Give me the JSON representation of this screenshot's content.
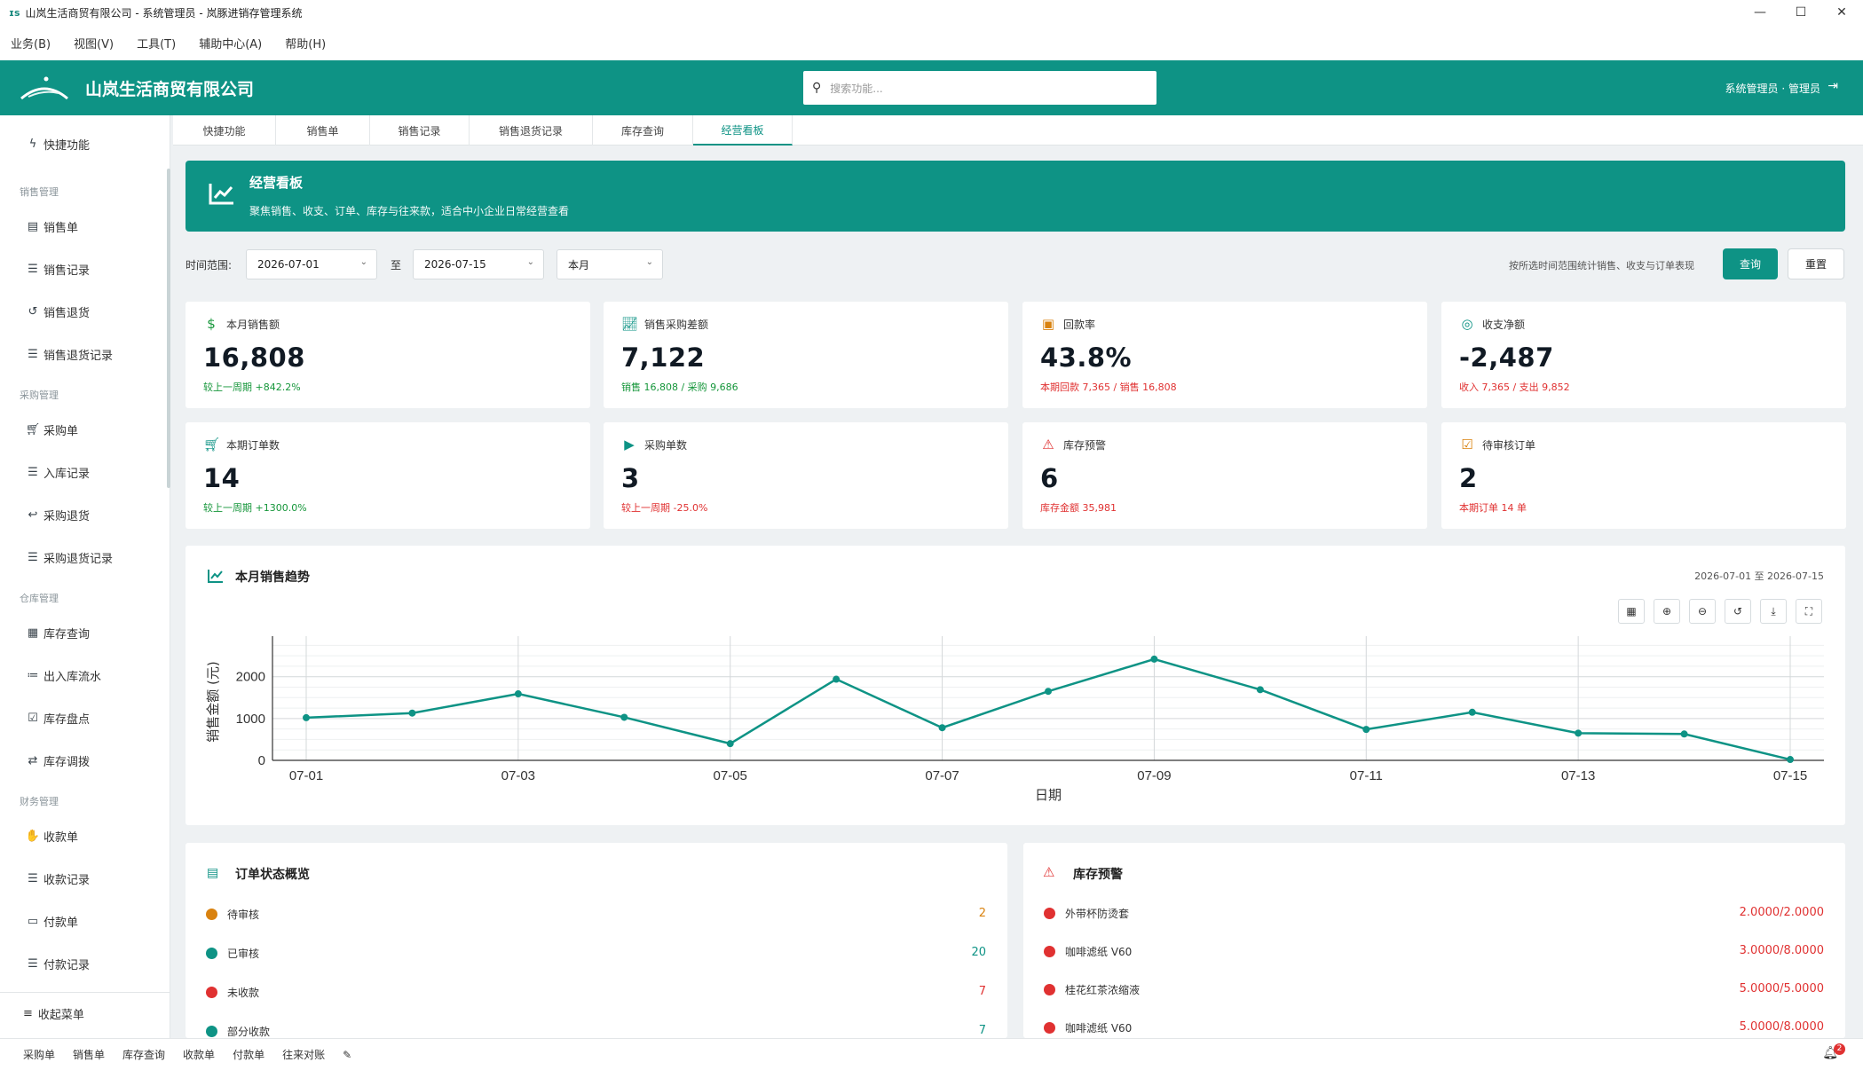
{
  "window": {
    "title": "山岚生活商贸有限公司 - 系统管理员 - 岚豚进销存管理系统",
    "logo_text": "ɪs"
  },
  "menu": [
    "业务(B)",
    "视图(V)",
    "工具(T)",
    "辅助中心(A)",
    "帮助(H)"
  ],
  "header": {
    "company": "山岚生活商贸有限公司",
    "search_placeholder": "搜索功能...",
    "user": "系统管理员 · 管理员"
  },
  "sidebar": {
    "quick": "快捷功能",
    "groups": [
      {
        "title": "销售管理",
        "items": [
          {
            "label": "销售单",
            "icon": "file-icon"
          },
          {
            "label": "销售记录",
            "icon": "list-icon"
          },
          {
            "label": "销售退货",
            "icon": "undo-icon"
          },
          {
            "label": "销售退货记录",
            "icon": "list-icon"
          }
        ]
      },
      {
        "title": "采购管理",
        "items": [
          {
            "label": "采购单",
            "icon": "cart-icon"
          },
          {
            "label": "入库记录",
            "icon": "list-icon"
          },
          {
            "label": "采购退货",
            "icon": "reply-icon"
          },
          {
            "label": "采购退货记录",
            "icon": "list-icon"
          }
        ]
      },
      {
        "title": "仓库管理",
        "items": [
          {
            "label": "库存查询",
            "icon": "boxes-icon"
          },
          {
            "label": "出入库流水",
            "icon": "bullet-list-icon"
          },
          {
            "label": "库存盘点",
            "icon": "clipboard-check-icon"
          },
          {
            "label": "库存调拨",
            "icon": "exchange-icon"
          }
        ]
      },
      {
        "title": "财务管理",
        "items": [
          {
            "label": "收款单",
            "icon": "hand-coin-icon"
          },
          {
            "label": "收款记录",
            "icon": "list-icon"
          },
          {
            "label": "付款单",
            "icon": "payment-icon"
          },
          {
            "label": "付款记录",
            "icon": "list-icon"
          }
        ]
      }
    ],
    "collapse": "收起菜单"
  },
  "tabs": [
    "快捷功能",
    "销售单",
    "销售记录",
    "销售退货记录",
    "库存查询",
    "经营看板"
  ],
  "active_tab": "经营看板",
  "banner": {
    "title": "经营看板",
    "subtitle": "聚焦销售、收支、订单、库存与往来款，适合中小企业日常经营查看"
  },
  "filter": {
    "label": "时间范围:",
    "start": "2026-07-01",
    "to": "至",
    "end": "2026-07-15",
    "period": "本月",
    "hint": "按所选时间范围统计销售、收支与订单表现",
    "query": "查询",
    "reset": "重置"
  },
  "kpis": [
    {
      "icon": "dollar-icon",
      "color": "#15963a",
      "title": "本月销售额",
      "value": "16,808",
      "foot": "较上一周期 +842.2%",
      "foot_class": "green"
    },
    {
      "icon": "chart-line-icon",
      "color": "#0e9385",
      "title": "销售采购差额",
      "value": "7,122",
      "foot": "销售 16,808 / 采购 9,686",
      "foot_class": "green"
    },
    {
      "icon": "wallet-icon",
      "color": "#d9820f",
      "title": "回款率",
      "value": "43.8%",
      "foot": "本期回款 7,365 / 销售 16,808",
      "foot_class": "red"
    },
    {
      "icon": "coins-icon",
      "color": "#0e9385",
      "title": "收支净额",
      "value": "-2,487",
      "foot": "收入 7,365 / 支出 9,852",
      "foot_class": "red"
    },
    {
      "icon": "cart-icon",
      "color": "#0e9385",
      "title": "本期订单数",
      "value": "14",
      "foot": "较上一周期 +1300.0%",
      "foot_class": "green"
    },
    {
      "icon": "truck-icon",
      "color": "#0e9385",
      "title": "采购单数",
      "value": "3",
      "foot": "较上一周期 -25.0%",
      "foot_class": "red"
    },
    {
      "icon": "warning-icon",
      "color": "#e03131",
      "title": "库存预警",
      "value": "6",
      "foot": "库存金额 35,981",
      "foot_class": "red"
    },
    {
      "icon": "clipboard-icon",
      "color": "#d9820f",
      "title": "待审核订单",
      "value": "2",
      "foot": "本期订单 14 单",
      "foot_class": "red"
    }
  ],
  "chart_card": {
    "title": "本月销售趋势",
    "range": "2026-07-01 至 2026-07-15"
  },
  "chart_data": {
    "type": "line",
    "x": [
      "07-01",
      "07-02",
      "07-03",
      "07-04",
      "07-05",
      "07-06",
      "07-07",
      "07-08",
      "07-09",
      "07-10",
      "07-11",
      "07-12",
      "07-13",
      "07-14",
      "07-15"
    ],
    "values": [
      1020,
      1130,
      1590,
      1030,
      400,
      1940,
      780,
      1650,
      2420,
      1690,
      740,
      1150,
      650,
      630,
      20
    ],
    "xticks": [
      "07-01",
      "07-03",
      "07-05",
      "07-07",
      "07-09",
      "07-11",
      "07-13",
      "07-15"
    ],
    "xlabel": "日期",
    "ylabel": "销售金额 (元)",
    "ylim": [
      0,
      2800
    ],
    "yticks": [
      0,
      1000,
      2000
    ],
    "color": "#0e9385",
    "grid": true
  },
  "orders": {
    "title": "订单状态概览",
    "rows": [
      {
        "label": "待审核",
        "value": "2",
        "color": "#d9820f"
      },
      {
        "label": "已审核",
        "value": "20",
        "color": "#0e9385"
      },
      {
        "label": "未收款",
        "value": "7",
        "color": "#e03131"
      },
      {
        "label": "部分收款",
        "value": "7",
        "color": "#0e9385"
      }
    ]
  },
  "stock": {
    "title": "库存预警",
    "rows": [
      {
        "label": "外带杯防烫套",
        "value": "2.0000/2.0000"
      },
      {
        "label": "咖啡滤纸 V60",
        "value": "3.0000/8.0000"
      },
      {
        "label": "桂花红茶浓缩液",
        "value": "5.0000/5.0000"
      },
      {
        "label": "咖啡滤纸 V60",
        "value": "5.0000/8.0000"
      }
    ]
  },
  "footer": [
    "采购单",
    "销售单",
    "库存查询",
    "收款单",
    "付款单",
    "往来对账"
  ],
  "notify_count": "2"
}
